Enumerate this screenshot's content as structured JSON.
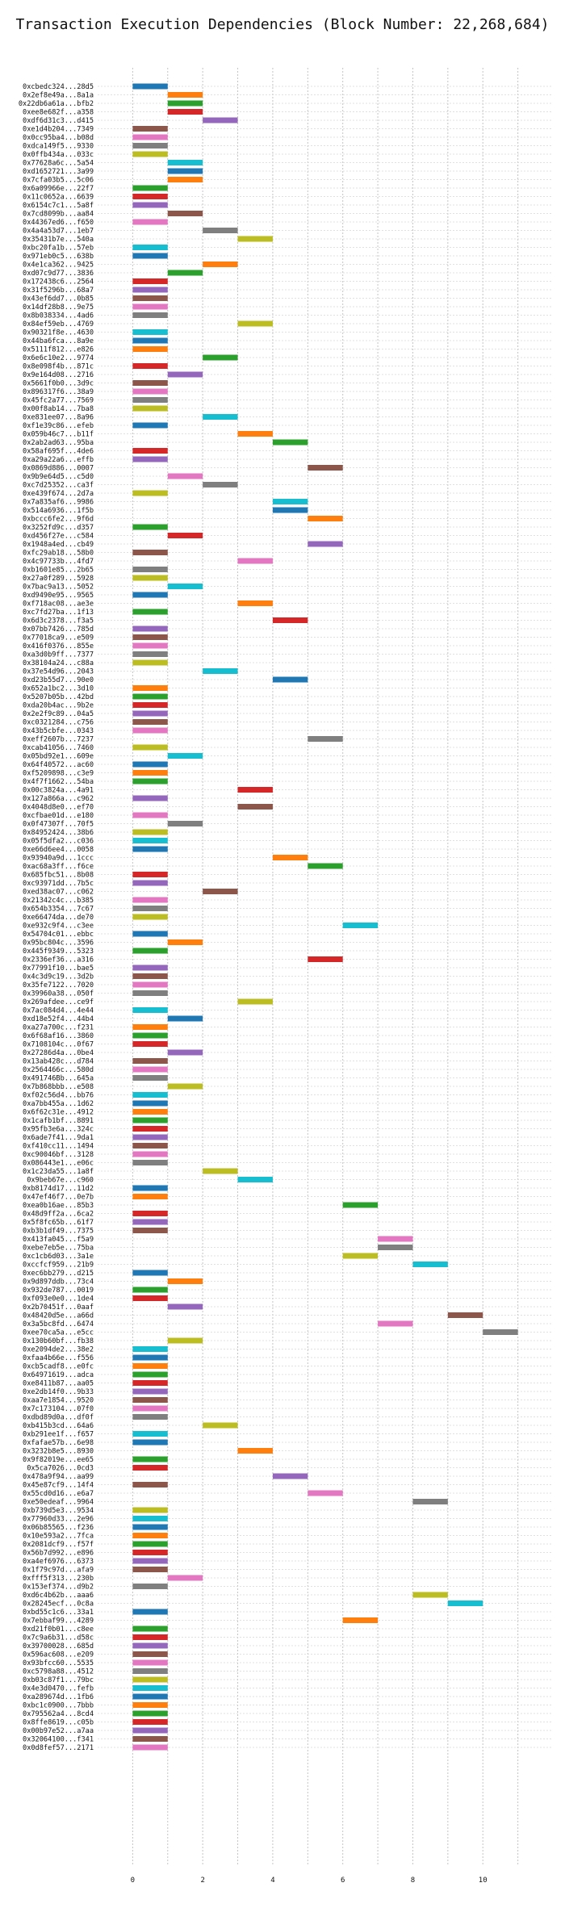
{
  "chart_data": {
    "type": "gantt",
    "title": "Transaction Execution Dependencies (Block Number: 22,268,684)",
    "xlim": [
      -1,
      12
    ],
    "xticks": [
      0,
      2,
      4,
      6,
      8,
      10
    ],
    "grid": true,
    "colors": {
      "blue": "#1f77b4",
      "orange": "#ff7f0e",
      "green": "#2ca02c",
      "red": "#d62728",
      "purple": "#9467bd",
      "brown": "#8c564b",
      "pink": "#e377c2",
      "gray": "#7f7f7f",
      "olive": "#bcbd22",
      "cyan": "#17becf"
    },
    "rows": [
      {
        "tx": "0xcbedc324...28d5",
        "start": 0,
        "color": "blue"
      },
      {
        "tx": "0x2ef8e49a...8a1a",
        "start": 1,
        "color": "orange"
      },
      {
        "tx": "0x22db6a61a...bfb2",
        "start": 1,
        "color": "green"
      },
      {
        "tx": "0xee8e682f...a358",
        "start": 1,
        "color": "red"
      },
      {
        "tx": "0xdf6d31c3...d415",
        "start": 2,
        "color": "purple"
      },
      {
        "tx": "0xe1d4b204...7349",
        "start": 0,
        "color": "brown"
      },
      {
        "tx": "0x0cc95ba4...b08d",
        "start": 0,
        "color": "pink"
      },
      {
        "tx": "0xdca149f5...9330",
        "start": 0,
        "color": "gray"
      },
      {
        "tx": "0x0ffb434a...033c",
        "start": 0,
        "color": "olive"
      },
      {
        "tx": "0x77628a6c...5a54",
        "start": 1,
        "color": "cyan"
      },
      {
        "tx": "0xd1652721...3a99",
        "start": 1,
        "color": "blue"
      },
      {
        "tx": "0x7cfa03b5...5c06",
        "start": 1,
        "color": "orange"
      },
      {
        "tx": "0x6a09966e...22f7",
        "start": 0,
        "color": "green"
      },
      {
        "tx": "0x11c0652a...6639",
        "start": 0,
        "color": "red"
      },
      {
        "tx": "0x6154c7c1...5a8f",
        "start": 0,
        "color": "purple"
      },
      {
        "tx": "0x7cd8099b...aa84",
        "start": 1,
        "color": "brown"
      },
      {
        "tx": "0x44367ed6...f650",
        "start": 0,
        "color": "pink"
      },
      {
        "tx": "0x4a4a53d7...1eb7",
        "start": 2,
        "color": "gray"
      },
      {
        "tx": "0x35431b7e...540a",
        "start": 3,
        "color": "olive"
      },
      {
        "tx": "0xbc20fa1b...57eb",
        "start": 0,
        "color": "cyan"
      },
      {
        "tx": "0x971eb0c5...638b",
        "start": 0,
        "color": "blue"
      },
      {
        "tx": "0x4e1ca362...9425",
        "start": 2,
        "color": "orange"
      },
      {
        "tx": "0xd07c9d77...3836",
        "start": 1,
        "color": "green"
      },
      {
        "tx": "0x172438c6...2564",
        "start": 0,
        "color": "red"
      },
      {
        "tx": "0x31f5296b...68a7",
        "start": 0,
        "color": "purple"
      },
      {
        "tx": "0x43ef6dd7...0b85",
        "start": 0,
        "color": "brown"
      },
      {
        "tx": "0x14df28b8...9e75",
        "start": 0,
        "color": "pink"
      },
      {
        "tx": "0x8b038334...4ad6",
        "start": 0,
        "color": "gray"
      },
      {
        "tx": "0x84ef59eb...4769",
        "start": 3,
        "color": "olive"
      },
      {
        "tx": "0x90321f8e...4630",
        "start": 0,
        "color": "cyan"
      },
      {
        "tx": "0x44ba6fca...8a9e",
        "start": 0,
        "color": "blue"
      },
      {
        "tx": "0x5111f812...e826",
        "start": 0,
        "color": "orange"
      },
      {
        "tx": "0x6e6c10e2...9774",
        "start": 2,
        "color": "green"
      },
      {
        "tx": "0x8e098f4b...871c",
        "start": 0,
        "color": "red"
      },
      {
        "tx": "0x9e164d08...2716",
        "start": 1,
        "color": "purple"
      },
      {
        "tx": "0x5661f0b0...3d9c",
        "start": 0,
        "color": "brown"
      },
      {
        "tx": "0x896317f6...38a9",
        "start": 0,
        "color": "pink"
      },
      {
        "tx": "0x45fc2a77...7569",
        "start": 0,
        "color": "gray"
      },
      {
        "tx": "0x00f8ab14...7ba8",
        "start": 0,
        "color": "olive"
      },
      {
        "tx": "0xe831ee07...8a96",
        "start": 2,
        "color": "cyan"
      },
      {
        "tx": "0xf1e39c86...efeb",
        "start": 0,
        "color": "blue"
      },
      {
        "tx": "0x059b46c7...b11f",
        "start": 3,
        "color": "orange"
      },
      {
        "tx": "0x2ab2ad63...95ba",
        "start": 4,
        "color": "green"
      },
      {
        "tx": "0x58af695f...4de6",
        "start": 0,
        "color": "red"
      },
      {
        "tx": "0xa29a22a6...effb",
        "start": 0,
        "color": "purple"
      },
      {
        "tx": "0x0869d886...0007",
        "start": 5,
        "color": "brown"
      },
      {
        "tx": "0x9b9e64d5...c5d0",
        "start": 1,
        "color": "pink"
      },
      {
        "tx": "0xc7d25352...ca3f",
        "start": 2,
        "color": "gray"
      },
      {
        "tx": "0xe439f674...2d7a",
        "start": 0,
        "color": "olive"
      },
      {
        "tx": "0x7a835af6...9986",
        "start": 4,
        "color": "cyan"
      },
      {
        "tx": "0x514a6936...1f5b",
        "start": 4,
        "color": "blue"
      },
      {
        "tx": "0xbccc6fe2...9f6d",
        "start": 5,
        "color": "orange"
      },
      {
        "tx": "0x3252fd9c...d357",
        "start": 0,
        "color": "green"
      },
      {
        "tx": "0xd456f27e...c584",
        "start": 1,
        "color": "red"
      },
      {
        "tx": "0x1948a4ed...cb49",
        "start": 5,
        "color": "purple"
      },
      {
        "tx": "0xfc29ab18...58b0",
        "start": 0,
        "color": "brown"
      },
      {
        "tx": "0x4c97733b...4fd7",
        "start": 3,
        "color": "pink"
      },
      {
        "tx": "0xb1601e85...2b65",
        "start": 0,
        "color": "gray"
      },
      {
        "tx": "0x27a0f289...5928",
        "start": 0,
        "color": "olive"
      },
      {
        "tx": "0x7bac9a13...5052",
        "start": 1,
        "color": "cyan"
      },
      {
        "tx": "0xd9490e95...9565",
        "start": 0,
        "color": "blue"
      },
      {
        "tx": "0xf718ac08...ae3e",
        "start": 3,
        "color": "orange"
      },
      {
        "tx": "0xc7fd27ba...1f13",
        "start": 0,
        "color": "green"
      },
      {
        "tx": "0x6d3c2378...f3a5",
        "start": 4,
        "color": "red"
      },
      {
        "tx": "0x07bb7426...785d",
        "start": 0,
        "color": "purple"
      },
      {
        "tx": "0x77018ca9...e509",
        "start": 0,
        "color": "brown"
      },
      {
        "tx": "0x416f0376...855e",
        "start": 0,
        "color": "pink"
      },
      {
        "tx": "0xa3d0b9ff...7377",
        "start": 0,
        "color": "gray"
      },
      {
        "tx": "0x38104a24...c88a",
        "start": 0,
        "color": "olive"
      },
      {
        "tx": "0x37e54d96...2043",
        "start": 2,
        "color": "cyan"
      },
      {
        "tx": "0xd23b55d7...90e0",
        "start": 4,
        "color": "blue"
      },
      {
        "tx": "0x652a1bc2...3d10",
        "start": 0,
        "color": "orange"
      },
      {
        "tx": "0x5207b05b...42bd",
        "start": 0,
        "color": "green"
      },
      {
        "tx": "0xda20b4ac...9b2e",
        "start": 0,
        "color": "red"
      },
      {
        "tx": "0x2e2f9c89...04a5",
        "start": 0,
        "color": "purple"
      },
      {
        "tx": "0xc0321284...c756",
        "start": 0,
        "color": "brown"
      },
      {
        "tx": "0x43b5cbfe...0343",
        "start": 0,
        "color": "pink"
      },
      {
        "tx": "0xeff2607b...7237",
        "start": 5,
        "color": "gray"
      },
      {
        "tx": "0xcab41056...7460",
        "start": 0,
        "color": "olive"
      },
      {
        "tx": "0x05bd92e1...609e",
        "start": 1,
        "color": "cyan"
      },
      {
        "tx": "0x64f40572...ac60",
        "start": 0,
        "color": "blue"
      },
      {
        "tx": "0xf5209898...c3e9",
        "start": 0,
        "color": "orange"
      },
      {
        "tx": "0x4f7f1662...54ba",
        "start": 0,
        "color": "green"
      },
      {
        "tx": "0x00c3824a...4a91",
        "start": 3,
        "color": "red"
      },
      {
        "tx": "0x127a866a...c962",
        "start": 0,
        "color": "purple"
      },
      {
        "tx": "0x4048d8e0...ef70",
        "start": 3,
        "color": "brown"
      },
      {
        "tx": "0xcfbae01d...e180",
        "start": 0,
        "color": "pink"
      },
      {
        "tx": "0x0f47307f...70f5",
        "start": 1,
        "color": "gray"
      },
      {
        "tx": "0x84952424...38b6",
        "start": 0,
        "color": "olive"
      },
      {
        "tx": "0x05f5dfa2...c036",
        "start": 0,
        "color": "cyan"
      },
      {
        "tx": "0xe66d6ee4...0058",
        "start": 0,
        "color": "blue"
      },
      {
        "tx": "0x93940a9d...1ccc",
        "start": 4,
        "color": "orange"
      },
      {
        "tx": "0xac68a3ff...f6ce",
        "start": 5,
        "color": "green"
      },
      {
        "tx": "0x685fbc51...8b08",
        "start": 0,
        "color": "red"
      },
      {
        "tx": "0xc93971dd...7b5c",
        "start": 0,
        "color": "purple"
      },
      {
        "tx": "0xed38ac07...c062",
        "start": 2,
        "color": "brown"
      },
      {
        "tx": "0x21342c4c...b385",
        "start": 0,
        "color": "pink"
      },
      {
        "tx": "0x654b3354...7c67",
        "start": 0,
        "color": "gray"
      },
      {
        "tx": "0xe66474da...de70",
        "start": 0,
        "color": "olive"
      },
      {
        "tx": "0xe932c9f4...c3ee",
        "start": 6,
        "color": "cyan"
      },
      {
        "tx": "0x54704c01...ebbc",
        "start": 0,
        "color": "blue"
      },
      {
        "tx": "0x95bc804c...3596",
        "start": 1,
        "color": "orange"
      },
      {
        "tx": "0x445f9349...5323",
        "start": 0,
        "color": "green"
      },
      {
        "tx": "0x2336ef36...a316",
        "start": 5,
        "color": "red"
      },
      {
        "tx": "0x77991f10...bae5",
        "start": 0,
        "color": "purple"
      },
      {
        "tx": "0x4c3d9c19...3d2b",
        "start": 0,
        "color": "brown"
      },
      {
        "tx": "0x35fe7122...7020",
        "start": 0,
        "color": "pink"
      },
      {
        "tx": "0x39960a38...050f",
        "start": 0,
        "color": "gray"
      },
      {
        "tx": "0x269afdee...ce9f",
        "start": 3,
        "color": "olive"
      },
      {
        "tx": "0x7ac084d4...4e44",
        "start": 0,
        "color": "cyan"
      },
      {
        "tx": "0xd18e52f4...44b4",
        "start": 1,
        "color": "blue"
      },
      {
        "tx": "0xa27a700c...f231",
        "start": 0,
        "color": "orange"
      },
      {
        "tx": "0x6f68af16...3860",
        "start": 0,
        "color": "green"
      },
      {
        "tx": "0x7108104c...0f67",
        "start": 0,
        "color": "red"
      },
      {
        "tx": "0x27286d4a...0be4",
        "start": 1,
        "color": "purple"
      },
      {
        "tx": "0x13ab428c...d784",
        "start": 0,
        "color": "brown"
      },
      {
        "tx": "0x2564466c...580d",
        "start": 0,
        "color": "pink"
      },
      {
        "tx": "0x491746Bb...645a",
        "start": 0,
        "color": "gray"
      },
      {
        "tx": "0x7b868bbb...e508",
        "start": 1,
        "color": "olive"
      },
      {
        "tx": "0xf02c56d4...bb76",
        "start": 0,
        "color": "cyan"
      },
      {
        "tx": "0xa7bb455a...1d62",
        "start": 0,
        "color": "blue"
      },
      {
        "tx": "0x6f62c31e...4912",
        "start": 0,
        "color": "orange"
      },
      {
        "tx": "0x1cafb1bf...8891",
        "start": 0,
        "color": "green"
      },
      {
        "tx": "0x95fb3e6a...324c",
        "start": 0,
        "color": "red"
      },
      {
        "tx": "0x6ade7f41...9da1",
        "start": 0,
        "color": "purple"
      },
      {
        "tx": "0xf410cc11...1494",
        "start": 0,
        "color": "brown"
      },
      {
        "tx": "0xc90046bf...3128",
        "start": 0,
        "color": "pink"
      },
      {
        "tx": "0x086443e1...e06c",
        "start": 0,
        "color": "gray"
      },
      {
        "tx": "0x1c23da55...1a8f",
        "start": 2,
        "color": "olive"
      },
      {
        "tx": "0x9beb67e...c960",
        "start": 3,
        "color": "cyan"
      },
      {
        "tx": "0xb8174d17...11d2",
        "start": 0,
        "color": "blue"
      },
      {
        "tx": "0x47ef46f7...0e7b",
        "start": 0,
        "color": "orange"
      },
      {
        "tx": "0xea0b16ae...85b3",
        "start": 6,
        "color": "green"
      },
      {
        "tx": "0x48d9ff2a...6ca2",
        "start": 0,
        "color": "red"
      },
      {
        "tx": "0x5f8fc65b...61f7",
        "start": 0,
        "color": "purple"
      },
      {
        "tx": "0xb3b1df49...7375",
        "start": 0,
        "color": "brown"
      },
      {
        "tx": "0x413fa045...f5a9",
        "start": 7,
        "color": "pink"
      },
      {
        "tx": "0xebe7eb5e...75ba",
        "start": 7,
        "color": "gray"
      },
      {
        "tx": "0xc1cb6d03...3a1e",
        "start": 6,
        "color": "olive"
      },
      {
        "tx": "0xccfcf959...21b9",
        "start": 8,
        "color": "cyan"
      },
      {
        "tx": "0xec6bb279...d215",
        "start": 0,
        "color": "blue"
      },
      {
        "tx": "0x9d897ddb...73c4",
        "start": 1,
        "color": "orange"
      },
      {
        "tx": "0x932de787...0019",
        "start": 0,
        "color": "green"
      },
      {
        "tx": "0xf093e0e0...1de4",
        "start": 0,
        "color": "red"
      },
      {
        "tx": "0x2b70451f...0aaf",
        "start": 1,
        "color": "purple"
      },
      {
        "tx": "0x48420d5e...a66d",
        "start": 9,
        "color": "brown"
      },
      {
        "tx": "0x3a5bc8fd...6474",
        "start": 7,
        "color": "pink"
      },
      {
        "tx": "0xee70ca5a...e5cc",
        "start": 10,
        "color": "gray"
      },
      {
        "tx": "0x130b60bf...fb38",
        "start": 1,
        "color": "olive"
      },
      {
        "tx": "0xe2094de2...38e2",
        "start": 0,
        "color": "cyan"
      },
      {
        "tx": "0xfaa4b66e...f556",
        "start": 0,
        "color": "blue"
      },
      {
        "tx": "0xcb5cadf8...e0fc",
        "start": 0,
        "color": "orange"
      },
      {
        "tx": "0x64971619...adca",
        "start": 0,
        "color": "green"
      },
      {
        "tx": "0xe8411b87...aa05",
        "start": 0,
        "color": "red"
      },
      {
        "tx": "0xe2db14f0...9b33",
        "start": 0,
        "color": "purple"
      },
      {
        "tx": "0xaa7e1854...9520",
        "start": 0,
        "color": "brown"
      },
      {
        "tx": "0x7c173104...07f0",
        "start": 0,
        "color": "pink"
      },
      {
        "tx": "0xdbd89d0a...df0f",
        "start": 0,
        "color": "gray"
      },
      {
        "tx": "0xb415b3cd...64a6",
        "start": 2,
        "color": "olive"
      },
      {
        "tx": "0xb291ee1f...f657",
        "start": 0,
        "color": "cyan"
      },
      {
        "tx": "0xfafae57b...6e98",
        "start": 0,
        "color": "blue"
      },
      {
        "tx": "0x3232b8e5...8930",
        "start": 3,
        "color": "orange"
      },
      {
        "tx": "0x9f82019e...ee65",
        "start": 0,
        "color": "green"
      },
      {
        "tx": "0x5ca7026...0cd3",
        "start": 0,
        "color": "red"
      },
      {
        "tx": "0x478a9f94...aa99",
        "start": 4,
        "color": "purple"
      },
      {
        "tx": "0x45e87cf9...14f4",
        "start": 0,
        "color": "brown"
      },
      {
        "tx": "0x55cd0d16...e6a7",
        "start": 5,
        "color": "pink"
      },
      {
        "tx": "0xe50edeaf...9964",
        "start": 8,
        "color": "gray"
      },
      {
        "tx": "0xb739d5e3...9534",
        "start": 0,
        "color": "olive"
      },
      {
        "tx": "0x77960d33...2e96",
        "start": 0,
        "color": "cyan"
      },
      {
        "tx": "0x06b85565...f236",
        "start": 0,
        "color": "blue"
      },
      {
        "tx": "0x10e593a2...7fca",
        "start": 0,
        "color": "orange"
      },
      {
        "tx": "0x2081dcf9...f57f",
        "start": 0,
        "color": "green"
      },
      {
        "tx": "0x56b7d992...e896",
        "start": 0,
        "color": "red"
      },
      {
        "tx": "0xa4ef6976...6373",
        "start": 0,
        "color": "purple"
      },
      {
        "tx": "0x1f79c97d...afa9",
        "start": 0,
        "color": "brown"
      },
      {
        "tx": "0xfff5f313...230b",
        "start": 1,
        "color": "pink"
      },
      {
        "tx": "0x153ef374...d9b2",
        "start": 0,
        "color": "gray"
      },
      {
        "tx": "0xd6c4b62b...aaa6",
        "start": 8,
        "color": "olive"
      },
      {
        "tx": "0x28245ecf...0c8a",
        "start": 9,
        "color": "cyan"
      },
      {
        "tx": "0xbd55c1c6...33a1",
        "start": 0,
        "color": "blue"
      },
      {
        "tx": "0x7ebbaf99...4289",
        "start": 6,
        "color": "orange"
      },
      {
        "tx": "0xd21f0b01...c8ee",
        "start": 0,
        "color": "green"
      },
      {
        "tx": "0x7c9a6b31...d58c",
        "start": 0,
        "color": "red"
      },
      {
        "tx": "0x39700028...685d",
        "start": 0,
        "color": "purple"
      },
      {
        "tx": "0x596ac608...e209",
        "start": 0,
        "color": "brown"
      },
      {
        "tx": "0x93bfcc60...5535",
        "start": 0,
        "color": "pink"
      },
      {
        "tx": "0xc5798a88...4512",
        "start": 0,
        "color": "gray"
      },
      {
        "tx": "0xb03c87f1...79bc",
        "start": 0,
        "color": "olive"
      },
      {
        "tx": "0x4e3d0470...fefb",
        "start": 0,
        "color": "cyan"
      },
      {
        "tx": "0xa289674d...1fb6",
        "start": 0,
        "color": "blue"
      },
      {
        "tx": "0xbc1c0900...7bbb",
        "start": 0,
        "color": "orange"
      },
      {
        "tx": "0x795562a4...8cd4",
        "start": 0,
        "color": "green"
      },
      {
        "tx": "0x8ffe8619...c05b",
        "start": 0,
        "color": "red"
      },
      {
        "tx": "0x00b97e52...a7aa",
        "start": 0,
        "color": "purple"
      },
      {
        "tx": "0x32064100...f341",
        "start": 0,
        "color": "brown"
      },
      {
        "tx": "0x0d8fef57...2171",
        "start": 0,
        "color": "pink"
      }
    ]
  }
}
